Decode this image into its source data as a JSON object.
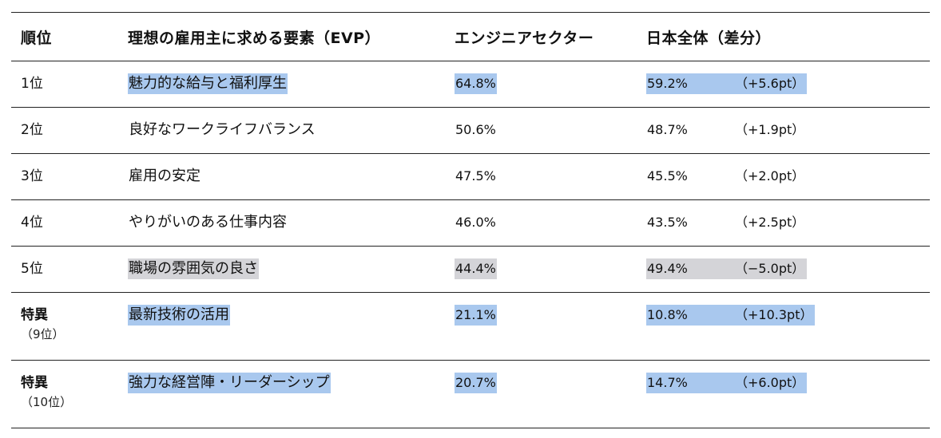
{
  "header": {
    "rank": "順位",
    "evp": "理想の雇用主に求める要素（EVP）",
    "engineer": "エンジニアセクター",
    "japan": "日本全体（差分）"
  },
  "rows": [
    {
      "rank": "1位",
      "rank_sub": "",
      "evp": "魅力的な給与と福利厚生",
      "engineer": "64.8%",
      "japan": "59.2%",
      "diff": "（+5.6pt）",
      "highlight": "#a9c8ee"
    },
    {
      "rank": "2位",
      "rank_sub": "",
      "evp": "良好なワークライフバランス",
      "engineer": "50.6%",
      "japan": "48.7%",
      "diff": "（+1.9pt）",
      "highlight": ""
    },
    {
      "rank": "3位",
      "rank_sub": "",
      "evp": "雇用の安定",
      "engineer": "47.5%",
      "japan": "45.5%",
      "diff": "（+2.0pt）",
      "highlight": ""
    },
    {
      "rank": "4位",
      "rank_sub": "",
      "evp": "やりがいのある仕事内容",
      "engineer": "46.0%",
      "japan": "43.5%",
      "diff": "（+2.5pt）",
      "highlight": ""
    },
    {
      "rank": "5位",
      "rank_sub": "",
      "evp": "職場の雰囲気の良さ",
      "engineer": "44.4%",
      "japan": "49.4%",
      "diff": "（−5.0pt）",
      "highlight": "#d4d4d8"
    },
    {
      "rank": "特異",
      "rank_sub": "（9位）",
      "evp": "最新技術の活用",
      "engineer": "21.1%",
      "japan": "10.8%",
      "diff": "（+10.3pt）",
      "highlight": "#a9c8ee"
    },
    {
      "rank": "特異",
      "rank_sub": "（10位）",
      "evp": "強力な経営陣・リーダーシップ",
      "engineer": "20.7%",
      "japan": "14.7%",
      "diff": "（+6.0pt）",
      "highlight": "#a9c8ee"
    }
  ]
}
